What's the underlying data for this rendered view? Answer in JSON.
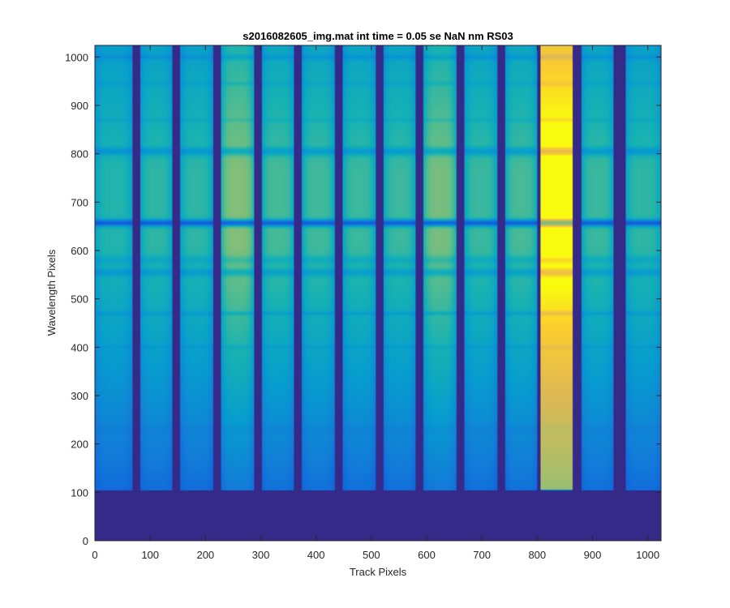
{
  "chart_data": {
    "type": "heatmap",
    "title": "s2016082605_img.mat int time = 0.05 se  NaN nm RS03",
    "xlabel": "Track Pixels",
    "ylabel": "Wavelength Pixels",
    "xlim": [
      0,
      1024
    ],
    "ylim": [
      0,
      1024
    ],
    "xticks": [
      0,
      100,
      200,
      300,
      400,
      500,
      600,
      700,
      800,
      900,
      1000
    ],
    "yticks": [
      0,
      100,
      200,
      300,
      400,
      500,
      600,
      700,
      800,
      900,
      1000
    ],
    "colormap": "parula",
    "background_color": "#35278f",
    "spectrum_start_row": 105,
    "spectrum_end_row": 1024,
    "tracks": [
      {
        "x_start": 0,
        "x_end": 68,
        "peak_intensity": 0.5
      },
      {
        "x_start": 82,
        "x_end": 140,
        "peak_intensity": 0.52
      },
      {
        "x_start": 155,
        "x_end": 213,
        "peak_intensity": 0.52
      },
      {
        "x_start": 229,
        "x_end": 287,
        "peak_intensity": 0.66
      },
      {
        "x_start": 302,
        "x_end": 360,
        "peak_intensity": 0.56
      },
      {
        "x_start": 375,
        "x_end": 433,
        "peak_intensity": 0.55
      },
      {
        "x_start": 449,
        "x_end": 507,
        "peak_intensity": 0.54
      },
      {
        "x_start": 522,
        "x_end": 580,
        "peak_intensity": 0.54
      },
      {
        "x_start": 595,
        "x_end": 653,
        "peak_intensity": 0.64
      },
      {
        "x_start": 669,
        "x_end": 727,
        "peak_intensity": 0.54
      },
      {
        "x_start": 742,
        "x_end": 800,
        "peak_intensity": 0.56
      },
      {
        "x_start": 807,
        "x_end": 864,
        "peak_intensity": 1.0
      },
      {
        "x_start": 880,
        "x_end": 938,
        "peak_intensity": 0.54
      },
      {
        "x_start": 960,
        "x_end": 1024,
        "peak_intensity": 0.52
      }
    ],
    "absorption_lines": [
      {
        "row": 657,
        "depth": 0.75,
        "width": 5
      },
      {
        "row": 805,
        "depth": 0.3,
        "width": 6
      },
      {
        "row": 555,
        "depth": 0.25,
        "width": 6
      },
      {
        "row": 580,
        "depth": 0.15,
        "width": 6
      },
      {
        "row": 470,
        "depth": 0.18,
        "width": 3
      },
      {
        "row": 400,
        "depth": 0.1,
        "width": 3
      },
      {
        "row": 1000,
        "depth": 0.2,
        "width": 4
      },
      {
        "row": 945,
        "depth": 0.1,
        "width": 3
      },
      {
        "row": 870,
        "depth": 0.08,
        "width": 3
      },
      {
        "row": 230,
        "depth": 0.08,
        "width": 6
      }
    ]
  }
}
